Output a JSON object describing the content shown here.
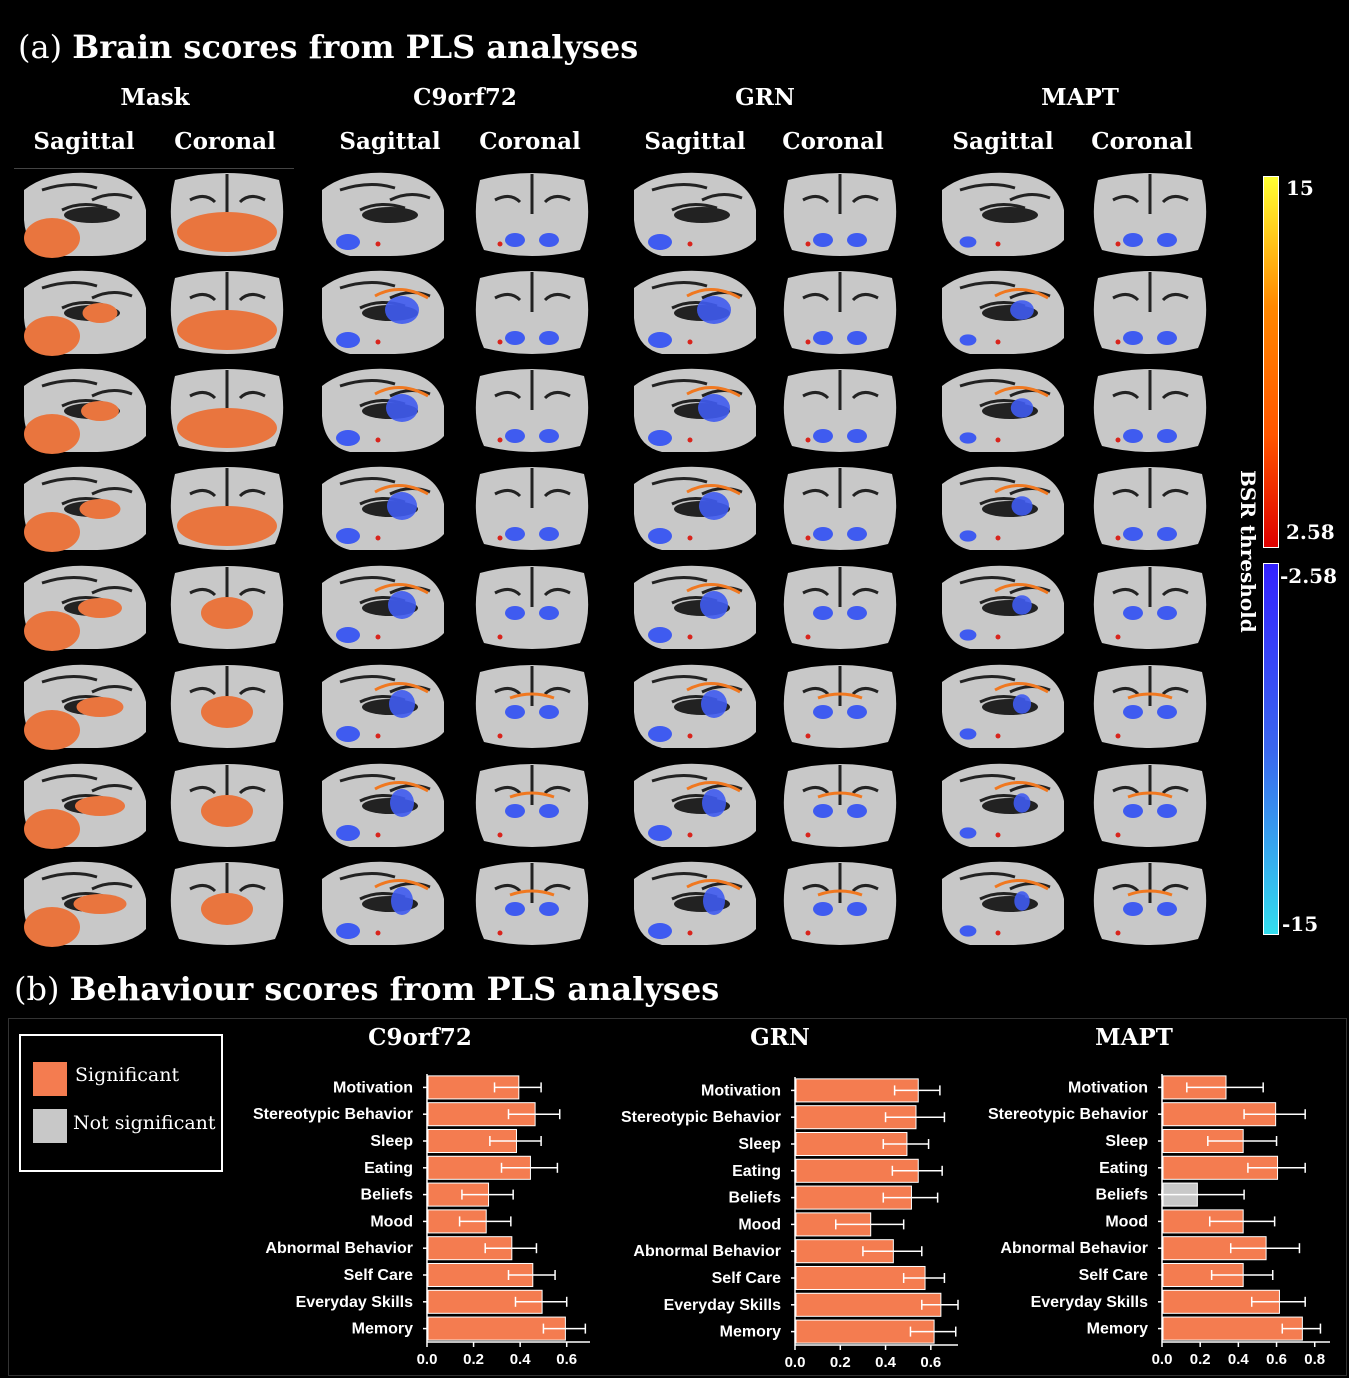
{
  "panel_a": {
    "title_letter": "(a)",
    "title_text": "Brain scores from PLS analyses",
    "columns": [
      {
        "name": "Mask",
        "views": [
          "Sagittal",
          "Coronal"
        ]
      },
      {
        "name": "C9orf72",
        "views": [
          "Sagittal",
          "Coronal"
        ]
      },
      {
        "name": "GRN",
        "views": [
          "Sagittal",
          "Coronal"
        ]
      },
      {
        "name": "MAPT",
        "views": [
          "Sagittal",
          "Coronal"
        ]
      }
    ],
    "colorbar": {
      "label": "BSR threshold",
      "pos_max": "15",
      "pos_min": "2.58",
      "neg_min": "-2.58",
      "neg_max": "-15",
      "colors": {
        "pos_top": "#ffff33",
        "pos_mid": "#ff6600",
        "pos_bottom": "#dd0000",
        "neg_top": "#3322ff",
        "neg_mid": "#3a66ee",
        "neg_bottom": "#33ddee"
      }
    },
    "colors": {
      "mask": "#e9753e",
      "blue": "#3f5bf0",
      "orange": "#f07820",
      "red": "#d8241c",
      "brain": "#c8c8c8"
    }
  },
  "panel_b": {
    "title_letter": "(b)",
    "title_text": "Behaviour scores from PLS analyses",
    "legend": [
      {
        "label": "Significant",
        "color": "#f47c50"
      },
      {
        "label": "Not significant",
        "color": "#c8c8c8"
      }
    ]
  },
  "chart_data": [
    {
      "type": "bar",
      "orientation": "horizontal",
      "title": "C9orf72",
      "categories": [
        "Motivation",
        "Stereotypic Behavior",
        "Sleep",
        "Eating",
        "Beliefs",
        "Mood",
        "Abnormal Behavior",
        "Self Care",
        "Everyday Skills",
        "Memory"
      ],
      "values": [
        0.39,
        0.46,
        0.38,
        0.44,
        0.26,
        0.25,
        0.36,
        0.45,
        0.49,
        0.59
      ],
      "error": [
        0.1,
        0.11,
        0.11,
        0.12,
        0.11,
        0.11,
        0.11,
        0.1,
        0.11,
        0.09
      ],
      "significant": [
        true,
        true,
        true,
        true,
        true,
        true,
        true,
        true,
        true,
        true
      ],
      "xlim": [
        0,
        0.7
      ],
      "xticks": [
        "0.0",
        "0.2",
        "0.4",
        "0.6"
      ]
    },
    {
      "type": "bar",
      "orientation": "horizontal",
      "title": "GRN",
      "categories": [
        "Motivation",
        "Stereotypic Behavior",
        "Sleep",
        "Eating",
        "Beliefs",
        "Mood",
        "Abnormal Behavior",
        "Self Care",
        "Everyday Skills",
        "Memory"
      ],
      "values": [
        0.54,
        0.53,
        0.49,
        0.54,
        0.51,
        0.33,
        0.43,
        0.57,
        0.64,
        0.61
      ],
      "error": [
        0.1,
        0.13,
        0.1,
        0.11,
        0.12,
        0.15,
        0.13,
        0.09,
        0.08,
        0.1
      ],
      "significant": [
        true,
        true,
        true,
        true,
        true,
        true,
        true,
        true,
        true,
        true
      ],
      "xlim": [
        0,
        0.72
      ],
      "xticks": [
        "0.0",
        "0.2",
        "0.4",
        "0.6"
      ]
    },
    {
      "type": "bar",
      "orientation": "horizontal",
      "title": "MAPT",
      "categories": [
        "Motivation",
        "Stereotypic Behavior",
        "Sleep",
        "Eating",
        "Beliefs",
        "Mood",
        "Abnormal Behavior",
        "Self Care",
        "Everyday Skills",
        "Memory"
      ],
      "values": [
        0.33,
        0.59,
        0.42,
        0.6,
        0.18,
        0.42,
        0.54,
        0.42,
        0.61,
        0.73
      ],
      "error": [
        0.2,
        0.16,
        0.18,
        0.15,
        0.25,
        0.17,
        0.18,
        0.16,
        0.14,
        0.1
      ],
      "significant": [
        true,
        true,
        true,
        true,
        false,
        true,
        true,
        true,
        true,
        true
      ],
      "xlim": [
        0,
        0.88
      ],
      "xticks": [
        "0.0",
        "0.2",
        "0.4",
        "0.6",
        "0.8"
      ]
    }
  ]
}
